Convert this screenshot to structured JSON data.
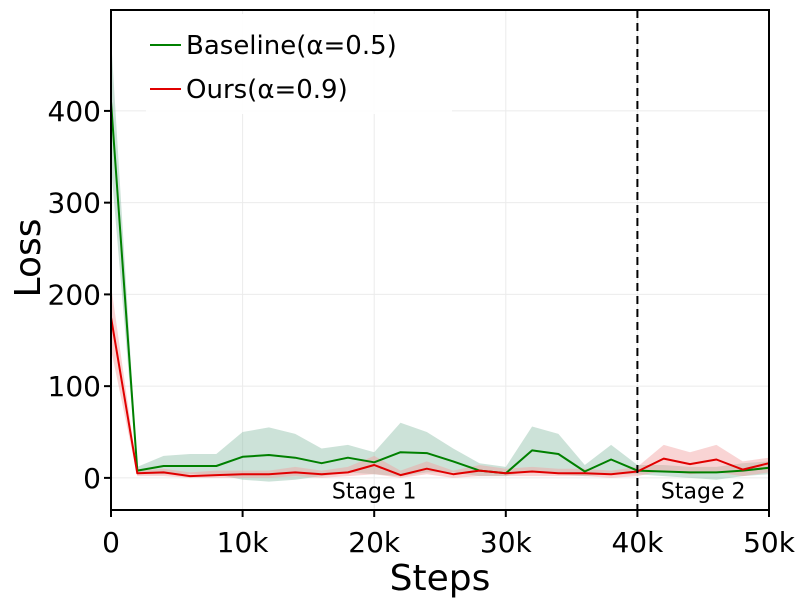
{
  "chart_data": {
    "type": "line",
    "title": "",
    "xlabel": "Steps",
    "ylabel": "Loss",
    "xlim": [
      0,
      50000
    ],
    "ylim": [
      -35,
      510
    ],
    "xticks": [
      0,
      10000,
      20000,
      30000,
      40000,
      50000
    ],
    "xtick_labels": [
      "0",
      "10k",
      "20k",
      "30k",
      "40k",
      "50k"
    ],
    "yticks": [
      0,
      100,
      200,
      300,
      400
    ],
    "ytick_labels": [
      "0",
      "100",
      "200",
      "300",
      "400"
    ],
    "grid": true,
    "legend_position": "top-left",
    "x": [
      0,
      2000,
      4000,
      6000,
      8000,
      10000,
      12000,
      14000,
      16000,
      18000,
      20000,
      22000,
      24000,
      26000,
      28000,
      30000,
      32000,
      34000,
      36000,
      38000,
      40000,
      42000,
      44000,
      46000,
      48000,
      50000
    ],
    "series": [
      {
        "name": "Baseline(α=0.5)",
        "color": "#008000",
        "band_color": "#8fbfa8",
        "values": [
          410,
          8,
          13,
          13,
          13,
          23,
          25,
          22,
          16,
          22,
          17,
          28,
          27,
          18,
          8,
          5,
          30,
          26,
          7,
          20,
          8,
          7,
          6,
          6,
          8,
          11
        ],
        "lower": [
          340,
          4,
          4,
          4,
          4,
          -2,
          -4,
          -2,
          2,
          6,
          4,
          2,
          6,
          6,
          2,
          2,
          8,
          4,
          2,
          4,
          4,
          2,
          0,
          -2,
          2,
          4
        ],
        "upper": [
          480,
          12,
          24,
          26,
          26,
          50,
          55,
          48,
          32,
          36,
          28,
          60,
          50,
          32,
          16,
          12,
          56,
          48,
          14,
          36,
          14,
          14,
          12,
          12,
          16,
          18
        ]
      },
      {
        "name": "Ours(α=0.9)",
        "color": "#e00000",
        "band_color": "#f2a0a0",
        "values": [
          175,
          5,
          6,
          2,
          3,
          4,
          4,
          6,
          4,
          6,
          14,
          3,
          10,
          4,
          8,
          5,
          7,
          5,
          5,
          4,
          7,
          21,
          15,
          20,
          9,
          16
        ],
        "lower": [
          140,
          2,
          2,
          0,
          0,
          0,
          0,
          2,
          0,
          2,
          4,
          0,
          4,
          0,
          2,
          2,
          2,
          2,
          2,
          0,
          2,
          8,
          4,
          6,
          2,
          6
        ],
        "upper": [
          210,
          8,
          10,
          6,
          8,
          8,
          8,
          12,
          8,
          12,
          24,
          8,
          18,
          8,
          14,
          10,
          12,
          10,
          10,
          8,
          12,
          36,
          28,
          36,
          18,
          22
        ]
      }
    ],
    "vline": {
      "x": 40000,
      "style": "dashed",
      "color": "#000000"
    },
    "annotations": [
      {
        "text": "Stage 1",
        "x": 20000,
        "y": -15
      },
      {
        "text": "Stage 2",
        "x": 45000,
        "y": -15
      }
    ]
  }
}
